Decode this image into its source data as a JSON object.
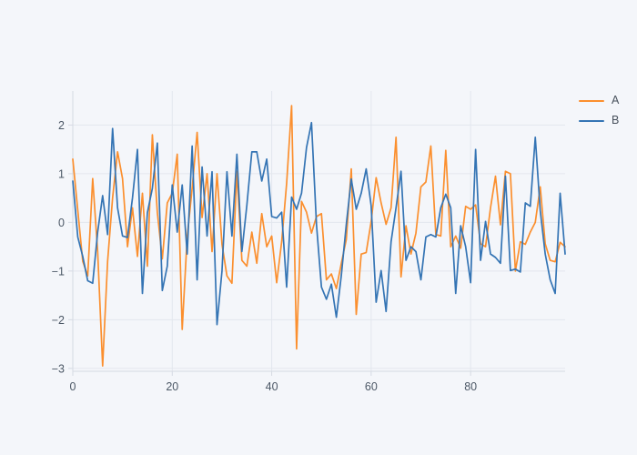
{
  "figure": {
    "title": ""
  },
  "chart_data": {
    "type": "line",
    "title": "",
    "xlabel": "",
    "ylabel": "",
    "x_description": "sample index 0–99 (implicit x = point index)",
    "xlim": [
      0,
      99
    ],
    "ylim": [
      -3.06,
      2.7
    ],
    "xticks": [
      0,
      20,
      40,
      60,
      80
    ],
    "yticks": [
      -3,
      -2,
      -1,
      0,
      1,
      2
    ],
    "grid": true,
    "legend_position": "top-right outside plot",
    "series": [
      {
        "name": "A",
        "color": "#fb8f2e",
        "values": [
          1.3,
          0.25,
          -0.8,
          -1.1,
          0.9,
          -0.6,
          -2.95,
          -0.8,
          0.5,
          1.45,
          0.9,
          -0.5,
          0.3,
          -0.7,
          0.6,
          -0.9,
          1.8,
          0.2,
          -0.75,
          0.4,
          0.6,
          1.4,
          -2.2,
          -0.3,
          0.7,
          1.85,
          0.1,
          1.0,
          -0.6,
          1.0,
          -0.45,
          -1.1,
          -1.25,
          1.05,
          -0.78,
          -0.9,
          -0.2,
          -0.84,
          0.18,
          -0.5,
          -0.28,
          -1.24,
          -0.4,
          0.8,
          2.4,
          -2.6,
          0.43,
          0.21,
          -0.22,
          0.12,
          0.18,
          -1.18,
          -1.06,
          -1.36,
          -0.84,
          -0.35,
          1.1,
          -1.89,
          -0.65,
          -0.62,
          0.02,
          0.92,
          0.4,
          -0.04,
          0.3,
          1.75,
          -1.12,
          -0.07,
          -0.65,
          -0.22,
          0.73,
          0.83,
          1.57,
          -0.25,
          -0.28,
          1.48,
          -0.5,
          -0.28,
          -0.53,
          0.33,
          0.27,
          0.36,
          -0.44,
          -0.5,
          0.3,
          0.95,
          -0.05,
          1.05,
          1.0,
          -1.0,
          -0.4,
          -0.45,
          -0.2,
          0.0,
          0.73,
          -0.44,
          -0.78,
          -0.81,
          -0.41,
          -0.5
        ]
      },
      {
        "name": "B",
        "color": "#3474b4",
        "values": [
          0.85,
          -0.3,
          -0.7,
          -1.2,
          -1.25,
          -0.2,
          0.55,
          -0.25,
          1.93,
          0.3,
          -0.28,
          -0.31,
          0.5,
          1.5,
          -1.46,
          0.2,
          0.7,
          1.63,
          -1.4,
          -0.9,
          0.77,
          -0.2,
          0.77,
          -0.65,
          1.57,
          -1.18,
          1.14,
          -0.28,
          1.04,
          -2.1,
          -1.0,
          1.04,
          -0.28,
          1.4,
          -0.6,
          0.35,
          1.45,
          1.45,
          0.85,
          1.3,
          0.12,
          0.09,
          0.21,
          -1.33,
          0.52,
          0.27,
          0.6,
          1.54,
          2.05,
          -0.04,
          -1.33,
          -1.58,
          -1.27,
          -1.95,
          -1.09,
          -0.04,
          0.89,
          0.27,
          0.6,
          1.1,
          0.34,
          -1.64,
          -0.99,
          -1.83,
          -0.4,
          0.3,
          1.05,
          -0.78,
          -0.5,
          -0.6,
          -1.18,
          -0.3,
          -0.25,
          -0.3,
          0.3,
          0.58,
          0.3,
          -1.46,
          -0.07,
          -0.5,
          -1.24,
          1.5,
          -0.78,
          0.02,
          -0.65,
          -0.72,
          -0.84,
          0.95,
          -0.99,
          -0.96,
          -1.02,
          0.4,
          0.33,
          1.75,
          0.24,
          -0.65,
          -1.18,
          -1.46,
          0.6,
          -0.65
        ]
      }
    ],
    "colors": {
      "background": "#f4f6fa",
      "grid": "#e3e7ee",
      "axis": "#d5dae3",
      "tick_label": "#4c5866",
      "legend_text": "#48515c"
    }
  }
}
